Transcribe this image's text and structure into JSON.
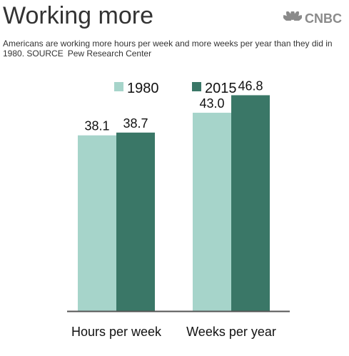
{
  "header": {
    "title": "Working more",
    "brand": "CNBC",
    "logo_icon": "peacock-icon"
  },
  "subtitle": {
    "text": "Americans are working more hours per week and more weeks per year than they did in 1980.",
    "source_label": "SOURCE",
    "source_name": "Pew Research Center"
  },
  "colors": {
    "series_1980": "#a6d4ca",
    "series_2015": "#3a7767",
    "baseline": "#555555",
    "brand_gray": "#8a8a8a"
  },
  "chart_data": {
    "type": "bar",
    "title": "Working more",
    "categories": [
      "Hours per week",
      "Weeks per year"
    ],
    "series": [
      {
        "name": "1980",
        "values": [
          38.1,
          43.0
        ],
        "labels": [
          "38.1",
          "43.0"
        ]
      },
      {
        "name": "2015",
        "values": [
          38.7,
          46.8
        ],
        "labels": [
          "38.7",
          "46.8"
        ]
      }
    ],
    "xlabel": "",
    "ylabel": "",
    "ylim": [
      0,
      56
    ],
    "grid": false,
    "legend": "top-center"
  }
}
